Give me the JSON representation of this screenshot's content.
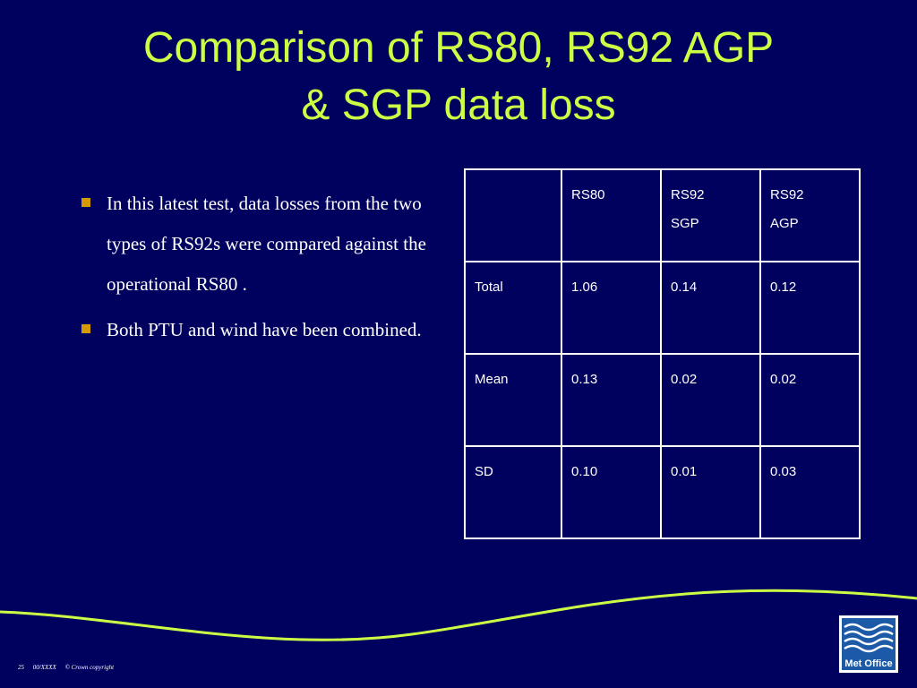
{
  "header": {
    "title_lines": [
      "Comparison of RS80, RS92 AGP",
      "& SGP data loss"
    ]
  },
  "bullets": [
    "In this latest test, data losses from the two types of RS92s  were compared against the operational RS80 .",
    "Both PTU and wind have been combined."
  ],
  "table": {
    "columns": [
      "RS80",
      "RS92\nSGP",
      "RS92\nAGP"
    ],
    "rows": [
      [
        "Total",
        "1.06",
        "0.14",
        "0.12"
      ],
      [
        "Mean",
        "0.13",
        "0.02",
        "0.02"
      ],
      [
        "SD",
        "0.10",
        "0.01",
        "0.03"
      ]
    ]
  },
  "footer": {
    "page": "25",
    "code": "00/XXXX",
    "copyright": "© Crown copyright"
  },
  "logo": {
    "text": "Met Office"
  }
}
